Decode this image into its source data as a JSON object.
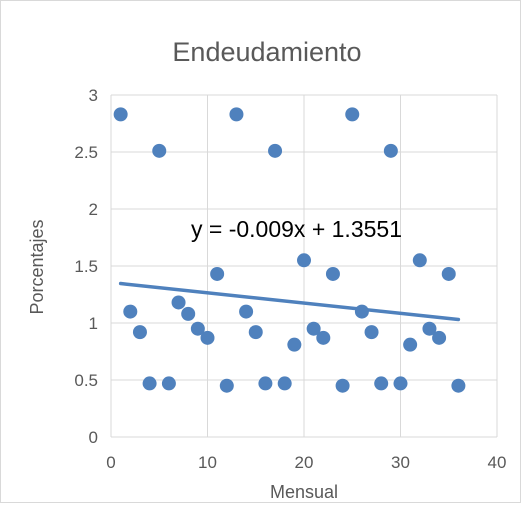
{
  "chart_data": {
    "type": "scatter",
    "title": "Endeudamiento",
    "xlabel": "Mensual",
    "ylabel": "Porcentajes",
    "xlim": [
      0,
      40
    ],
    "ylim": [
      0,
      3
    ],
    "x_ticks": [
      "0",
      "10",
      "20",
      "30",
      "40"
    ],
    "y_ticks": [
      "0",
      "0.5",
      "1",
      "1.5",
      "2",
      "2.5",
      "3"
    ],
    "grid": true,
    "legend": "none",
    "marker_color": "#4f81bd",
    "trendline_color": "#4f81bd",
    "trendline": {
      "equation_label": "y = -0.009x + 1.3551",
      "slope": -0.009,
      "intercept": 1.3551
    },
    "series": [
      {
        "x": [
          1,
          2,
          3,
          4,
          5,
          6,
          7,
          8,
          9,
          10,
          11,
          12,
          13,
          14,
          15,
          16,
          17,
          18,
          19,
          20,
          21,
          22,
          23,
          24,
          25,
          26,
          27,
          28,
          29,
          30,
          31,
          32,
          33,
          34,
          35,
          36
        ],
        "y": [
          2.83,
          1.1,
          0.92,
          0.47,
          2.51,
          0.47,
          1.18,
          1.08,
          0.95,
          0.87,
          1.43,
          0.45,
          2.83,
          1.1,
          0.92,
          0.47,
          2.51,
          0.47,
          0.81,
          1.55,
          0.95,
          0.87,
          1.43,
          0.45,
          2.83,
          1.1,
          0.92,
          0.47,
          2.51,
          0.47,
          0.81,
          1.55,
          0.95,
          0.87,
          1.43,
          0.45
        ]
      }
    ]
  }
}
